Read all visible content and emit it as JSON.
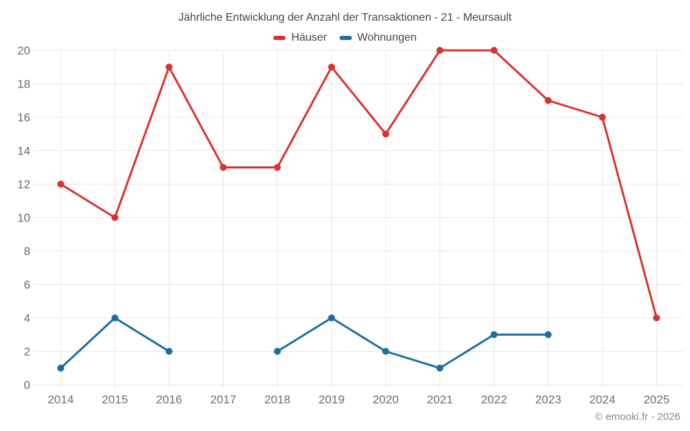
{
  "title": "Jährliche Entwicklung der Anzahl der Transaktionen - 21 - Meursault",
  "legend": [
    {
      "label": "Häuser",
      "color": "#d93230"
    },
    {
      "label": "Wohnungen",
      "color": "#1c6ea4"
    }
  ],
  "footer": "© emooki.fr - 2026",
  "colors": {
    "grid": "#e7e7e7",
    "axis_text": "#6e6e6e",
    "haeuser_red": "#d93230",
    "wohnungen_blue": "#1c6ea4"
  },
  "chart_data": {
    "type": "line",
    "title": "Jährliche Entwicklung der Anzahl der Transaktionen - 21 - Meursault",
    "xlabel": "",
    "ylabel": "",
    "categories": [
      "2014",
      "2015",
      "2016",
      "2017",
      "2018",
      "2019",
      "2020",
      "2021",
      "2022",
      "2023",
      "2024",
      "2025"
    ],
    "series": [
      {
        "name": "Häuser",
        "color": "#d93230",
        "values": [
          12,
          10,
          19,
          13,
          13,
          19,
          15,
          20,
          20,
          17,
          16,
          4
        ]
      },
      {
        "name": "Wohnungen",
        "color": "#1c6ea4",
        "values": [
          1,
          4,
          2,
          null,
          2,
          4,
          2,
          1,
          3,
          3,
          null,
          null
        ]
      }
    ],
    "yticks": [
      0,
      2,
      4,
      6,
      8,
      10,
      12,
      14,
      16,
      18,
      20
    ],
    "ylim": [
      0,
      20
    ],
    "grid": true,
    "legend_position": "top"
  }
}
